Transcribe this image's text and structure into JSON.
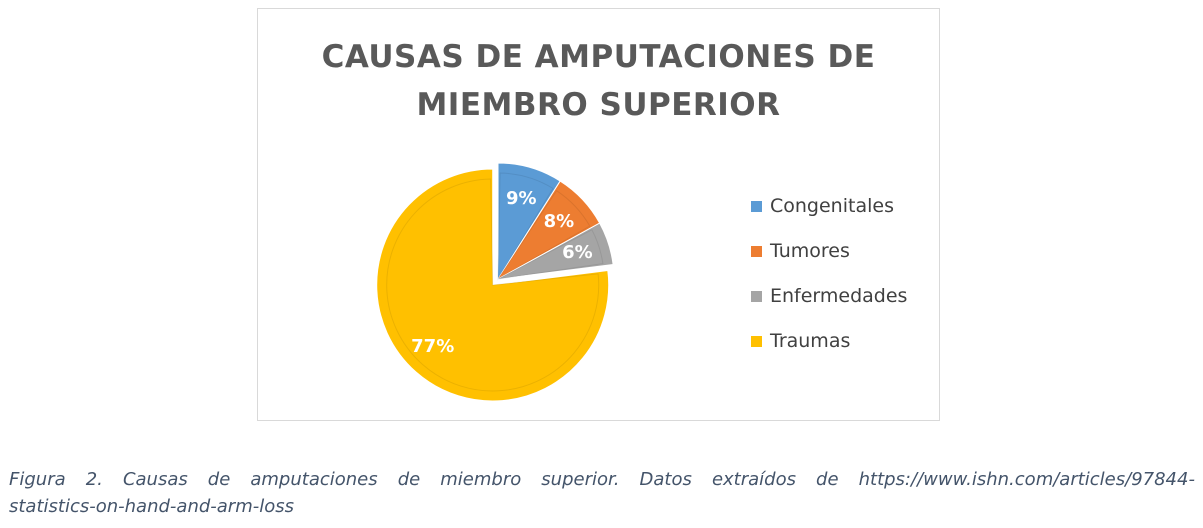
{
  "chart_data": {
    "type": "pie",
    "title_lines": [
      "CAUSAS DE AMPUTACIONES DE",
      "MIEMBRO SUPERIOR"
    ],
    "categories": [
      "Congenitales",
      "Tumores",
      "Enfermedades",
      "Traumas"
    ],
    "values": [
      9,
      8,
      6,
      77
    ],
    "data_labels": [
      "9%",
      "8%",
      "6%",
      "77%"
    ],
    "unit": "%",
    "exploded_slice": "Traumas",
    "legend_position": "right",
    "colors": [
      "#5b9bd5",
      "#ed7d31",
      "#a5a5a5",
      "#ffc000"
    ]
  },
  "caption": {
    "line1_words": [
      "Figura",
      "2.",
      "Causas",
      "de",
      "amputaciones",
      "de",
      "miembro",
      "superior.",
      "Datos",
      "extraídos",
      "de",
      "https://www.ishn.com/articles/97844-"
    ],
    "line2": "statistics-on-hand-and-arm-loss"
  }
}
